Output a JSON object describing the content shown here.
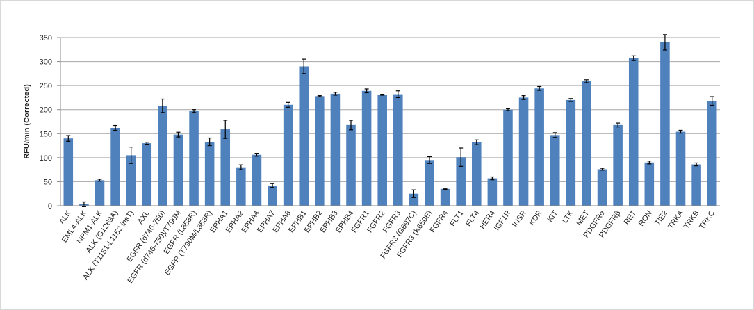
{
  "chart_data": {
    "type": "bar",
    "y_label": "RFU/min (Corrected)",
    "categories": [
      "ALK",
      "EML4-ALK",
      "NPM1-ALK",
      "ALK (G1269A)",
      "ALK (T1151-L1152 insT)",
      "AXL",
      "EGFR (d746-750)",
      "EGFR (d746-750)/T790M",
      "EGFR (L858R)",
      "EGFR (T790M/L858R)",
      "EPHA1",
      "EPHA2",
      "EPHA4",
      "EPHA7",
      "EPHA8",
      "EPHB1",
      "EPHB2",
      "EPHB3",
      "EPHB4",
      "FGFR1",
      "FGFR2",
      "FGFR3",
      "FGFR3 (G697C)",
      "FGFR3 (K650E)",
      "FGFR4",
      "FLT1",
      "FLT4",
      "HER4",
      "IGF1R",
      "INSR",
      "KDR",
      "KIT",
      "LTK",
      "MET",
      "PDGFRα",
      "PDGFRβ",
      "RET",
      "RON",
      "TIE2",
      "TRKA",
      "TRKB",
      "TRKC"
    ],
    "values": [
      140,
      3,
      53,
      162,
      105,
      130,
      208,
      148,
      197,
      133,
      159,
      80,
      106,
      42,
      210,
      290,
      228,
      233,
      168,
      239,
      231,
      232,
      25,
      95,
      35,
      101,
      132,
      57,
      200,
      225,
      244,
      147,
      220,
      259,
      76,
      168,
      307,
      90,
      340,
      154,
      86,
      218
    ],
    "errors": [
      6,
      5,
      2,
      5,
      17,
      2,
      14,
      5,
      3,
      8,
      19,
      5,
      3,
      4,
      5,
      15,
      1,
      3,
      10,
      4,
      1,
      7,
      8,
      7,
      1,
      19,
      5,
      3,
      2,
      4,
      4,
      5,
      3,
      3,
      2,
      4,
      5,
      3,
      16,
      3,
      3,
      9
    ],
    "color": "#4f81bd",
    "ylim": [
      0,
      350
    ],
    "yticks": [
      0,
      50,
      100,
      150,
      200,
      250,
      300,
      350
    ],
    "grid": true
  }
}
